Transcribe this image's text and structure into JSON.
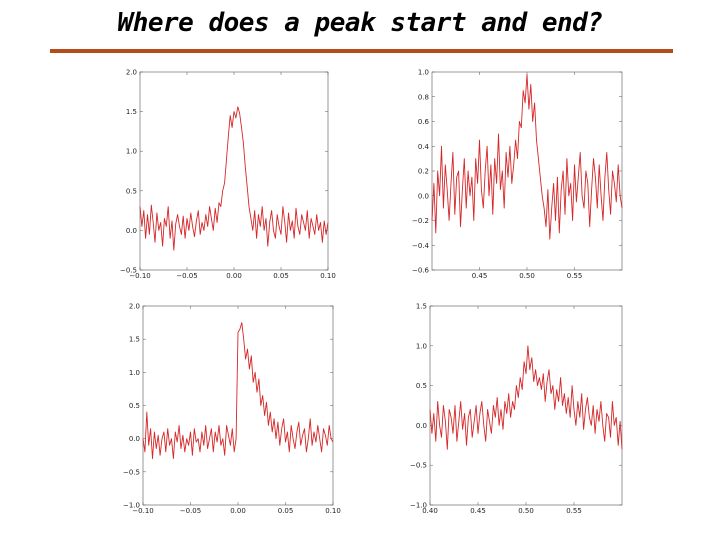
{
  "slide": {
    "title": "Where does a peak start and end?",
    "rule_color": "#b64b1b"
  },
  "chart_data": [
    {
      "type": "line",
      "position": "top-left",
      "color": "#d62728",
      "xlim": [
        -0.1,
        0.1
      ],
      "ylim": [
        -0.5,
        2.0
      ],
      "xticks": [
        -0.1,
        -0.05,
        0.0,
        0.05,
        0.1
      ],
      "xtick_labels": [
        "−0.10",
        "−0.05",
        "0.00",
        "0.05",
        "0.10"
      ],
      "yticks": [
        -0.5,
        0.0,
        0.5,
        1.0,
        1.5,
        2.0
      ],
      "ytick_labels": [
        "−0.5",
        "0.0",
        "0.5",
        "1.0",
        "1.5",
        "2.0"
      ],
      "x": [
        -0.1,
        -0.098,
        -0.096,
        -0.094,
        -0.092,
        -0.09,
        -0.088,
        -0.086,
        -0.084,
        -0.082,
        -0.08,
        -0.078,
        -0.076,
        -0.074,
        -0.072,
        -0.07,
        -0.068,
        -0.066,
        -0.064,
        -0.062,
        -0.06,
        -0.058,
        -0.056,
        -0.054,
        -0.052,
        -0.05,
        -0.048,
        -0.046,
        -0.044,
        -0.042,
        -0.04,
        -0.038,
        -0.036,
        -0.034,
        -0.032,
        -0.03,
        -0.028,
        -0.026,
        -0.024,
        -0.022,
        -0.02,
        -0.018,
        -0.016,
        -0.014,
        -0.012,
        -0.01,
        -0.008,
        -0.006,
        -0.004,
        -0.002,
        0.0,
        0.002,
        0.004,
        0.006,
        0.008,
        0.01,
        0.012,
        0.014,
        0.016,
        0.018,
        0.02,
        0.022,
        0.024,
        0.026,
        0.028,
        0.03,
        0.032,
        0.034,
        0.036,
        0.038,
        0.04,
        0.042,
        0.044,
        0.046,
        0.048,
        0.05,
        0.052,
        0.054,
        0.056,
        0.058,
        0.06,
        0.062,
        0.064,
        0.066,
        0.068,
        0.07,
        0.072,
        0.074,
        0.076,
        0.078,
        0.08,
        0.082,
        0.084,
        0.086,
        0.088,
        0.09,
        0.092,
        0.094,
        0.096,
        0.098,
        0.1
      ],
      "y": [
        0.3,
        0.05,
        0.25,
        -0.1,
        0.2,
        -0.05,
        0.32,
        0.1,
        -0.15,
        0.22,
        0.0,
        0.1,
        -0.2,
        0.15,
        0.05,
        0.3,
        -0.1,
        0.12,
        -0.25,
        0.08,
        0.2,
        0.05,
        -0.05,
        0.18,
        -0.1,
        0.15,
        0.0,
        0.22,
        0.05,
        -0.08,
        0.12,
        0.25,
        -0.05,
        0.1,
        0.0,
        0.2,
        0.05,
        0.3,
        0.15,
        0.0,
        0.28,
        0.1,
        0.35,
        0.3,
        0.5,
        0.6,
        0.9,
        1.2,
        1.45,
        1.3,
        1.5,
        1.42,
        1.56,
        1.48,
        1.3,
        1.1,
        0.8,
        0.55,
        0.3,
        0.15,
        0.0,
        0.25,
        -0.1,
        0.2,
        0.05,
        0.3,
        0.0,
        0.15,
        -0.2,
        0.1,
        0.25,
        0.0,
        -0.1,
        0.2,
        0.05,
        -0.05,
        0.3,
        0.1,
        -0.15,
        0.22,
        0.0,
        0.12,
        -0.1,
        0.28,
        0.05,
        -0.05,
        0.2,
        0.1,
        0.0,
        0.25,
        -0.1,
        0.15,
        0.05,
        -0.05,
        0.2,
        0.0,
        0.1,
        -0.15,
        0.12,
        -0.05,
        0.1
      ]
    },
    {
      "type": "line",
      "position": "top-right",
      "color": "#d62728",
      "xlim": [
        0.4,
        0.6
      ],
      "ylim": [
        -0.6,
        1.0
      ],
      "xticks": [
        0.45,
        0.5,
        0.55
      ],
      "xtick_labels": [
        "0.45",
        "0.50",
        "0.55"
      ],
      "yticks": [
        -0.6,
        -0.4,
        -0.2,
        0.0,
        0.2,
        0.4,
        0.6,
        0.8,
        1.0
      ],
      "ytick_labels": [
        "−0.6",
        "−0.4",
        "−0.2",
        "0.0",
        "0.2",
        "0.4",
        "0.6",
        "0.8",
        "1.0"
      ],
      "x": [
        0.4,
        0.402,
        0.404,
        0.406,
        0.408,
        0.41,
        0.412,
        0.414,
        0.416,
        0.418,
        0.42,
        0.422,
        0.424,
        0.426,
        0.428,
        0.43,
        0.432,
        0.434,
        0.436,
        0.438,
        0.44,
        0.442,
        0.444,
        0.446,
        0.448,
        0.45,
        0.452,
        0.454,
        0.456,
        0.458,
        0.46,
        0.462,
        0.464,
        0.466,
        0.468,
        0.47,
        0.472,
        0.474,
        0.476,
        0.478,
        0.48,
        0.482,
        0.484,
        0.486,
        0.488,
        0.49,
        0.492,
        0.494,
        0.496,
        0.498,
        0.5,
        0.502,
        0.504,
        0.506,
        0.508,
        0.51,
        0.512,
        0.514,
        0.516,
        0.518,
        0.52,
        0.522,
        0.524,
        0.526,
        0.528,
        0.53,
        0.532,
        0.534,
        0.536,
        0.538,
        0.54,
        0.542,
        0.544,
        0.546,
        0.548,
        0.55,
        0.552,
        0.554,
        0.556,
        0.558,
        0.56,
        0.562,
        0.564,
        0.566,
        0.568,
        0.57,
        0.572,
        0.574,
        0.576,
        0.578,
        0.58,
        0.582,
        0.584,
        0.586,
        0.588,
        0.59,
        0.592,
        0.594,
        0.596,
        0.598,
        0.6
      ],
      "y": [
        -0.2,
        0.1,
        -0.3,
        0.2,
        0.0,
        0.4,
        -0.1,
        0.25,
        0.05,
        -0.2,
        0.1,
        0.35,
        -0.15,
        0.15,
        0.2,
        -0.25,
        0.05,
        0.3,
        -0.1,
        0.2,
        0.0,
        0.15,
        -0.2,
        0.3,
        0.1,
        0.45,
        0.05,
        -0.1,
        0.2,
        0.4,
        0.0,
        0.25,
        -0.15,
        0.3,
        0.1,
        0.5,
        0.05,
        0.2,
        -0.1,
        0.35,
        0.15,
        0.4,
        0.1,
        0.25,
        0.45,
        0.3,
        0.6,
        0.55,
        0.85,
        0.75,
        0.98,
        0.7,
        0.9,
        0.6,
        0.75,
        0.45,
        0.3,
        0.15,
        0.0,
        -0.1,
        -0.25,
        0.05,
        -0.35,
        -0.1,
        0.1,
        -0.2,
        0.15,
        -0.3,
        0.05,
        0.2,
        -0.15,
        0.3,
        0.0,
        0.1,
        -0.2,
        0.25,
        -0.05,
        0.15,
        0.35,
        0.0,
        -0.1,
        0.2,
        0.1,
        -0.25,
        0.05,
        0.3,
        0.15,
        -0.1,
        0.25,
        0.0,
        -0.2,
        0.15,
        0.35,
        0.05,
        -0.15,
        0.2,
        0.1,
        -0.05,
        0.25,
        0.0,
        -0.1
      ]
    },
    {
      "type": "line",
      "position": "bottom-left",
      "color": "#d62728",
      "xlim": [
        -0.1,
        0.1
      ],
      "ylim": [
        -1.0,
        2.0
      ],
      "xticks": [
        -0.1,
        -0.05,
        0.0,
        0.05,
        0.1
      ],
      "xtick_labels": [
        "−0.10",
        "−0.05",
        "0.00",
        "0.05",
        "0.10"
      ],
      "yticks": [
        -1.0,
        -0.5,
        0.0,
        0.5,
        1.0,
        1.5,
        2.0
      ],
      "ytick_labels": [
        "−1.0",
        "−0.5",
        "0.0",
        "0.5",
        "1.0",
        "1.5",
        "2.0"
      ],
      "x": [
        -0.1,
        -0.098,
        -0.096,
        -0.094,
        -0.092,
        -0.09,
        -0.088,
        -0.086,
        -0.084,
        -0.082,
        -0.08,
        -0.078,
        -0.076,
        -0.074,
        -0.072,
        -0.07,
        -0.068,
        -0.066,
        -0.064,
        -0.062,
        -0.06,
        -0.058,
        -0.056,
        -0.054,
        -0.052,
        -0.05,
        -0.048,
        -0.046,
        -0.044,
        -0.042,
        -0.04,
        -0.038,
        -0.036,
        -0.034,
        -0.032,
        -0.03,
        -0.028,
        -0.026,
        -0.024,
        -0.022,
        -0.02,
        -0.018,
        -0.016,
        -0.014,
        -0.012,
        -0.01,
        -0.008,
        -0.006,
        -0.004,
        -0.002,
        0.0,
        0.002,
        0.004,
        0.006,
        0.008,
        0.01,
        0.012,
        0.014,
        0.016,
        0.018,
        0.02,
        0.022,
        0.024,
        0.026,
        0.028,
        0.03,
        0.032,
        0.034,
        0.036,
        0.038,
        0.04,
        0.042,
        0.044,
        0.046,
        0.048,
        0.05,
        0.052,
        0.054,
        0.056,
        0.058,
        0.06,
        0.062,
        0.064,
        0.066,
        0.068,
        0.07,
        0.072,
        0.074,
        0.076,
        0.078,
        0.08,
        0.082,
        0.084,
        0.086,
        0.088,
        0.09,
        0.092,
        0.094,
        0.096,
        0.098,
        0.1
      ],
      "y": [
        0.0,
        -0.2,
        0.4,
        -0.1,
        0.15,
        -0.3,
        0.1,
        -0.15,
        0.05,
        -0.25,
        0.0,
        0.1,
        -0.2,
        0.15,
        -0.1,
        0.0,
        -0.3,
        0.1,
        -0.05,
        0.2,
        -0.15,
        0.05,
        -0.2,
        0.0,
        -0.1,
        0.1,
        -0.25,
        0.15,
        -0.05,
        0.0,
        -0.2,
        0.1,
        -0.1,
        0.2,
        -0.15,
        0.0,
        0.15,
        -0.2,
        0.1,
        -0.05,
        0.2,
        -0.1,
        0.0,
        -0.25,
        0.2,
        0.05,
        -0.1,
        0.15,
        -0.2,
        0.0,
        1.6,
        1.65,
        1.75,
        1.5,
        1.2,
        1.35,
        1.05,
        1.25,
        0.85,
        1.0,
        0.7,
        0.9,
        0.5,
        0.65,
        0.35,
        0.55,
        0.2,
        0.4,
        0.1,
        0.3,
        0.0,
        0.25,
        -0.1,
        0.15,
        0.3,
        -0.05,
        0.1,
        -0.2,
        0.2,
        0.0,
        -0.15,
        0.1,
        0.25,
        -0.1,
        0.05,
        0.15,
        -0.2,
        0.0,
        0.3,
        -0.1,
        0.1,
        -0.05,
        0.2,
        0.0,
        -0.2,
        0.15,
        0.05,
        -0.1,
        0.2,
        0.0,
        -0.05
      ]
    },
    {
      "type": "line",
      "position": "bottom-right",
      "color": "#d62728",
      "xlim": [
        0.4,
        0.6
      ],
      "ylim": [
        -1.0,
        1.5
      ],
      "xticks": [
        0.4,
        0.45,
        0.5,
        0.55
      ],
      "xtick_labels": [
        "0.40",
        "0.45",
        "0.50",
        "0.55"
      ],
      "yticks": [
        -1.0,
        -0.5,
        0.0,
        0.5,
        1.0,
        1.5
      ],
      "ytick_labels": [
        "−1.0",
        "−0.5",
        "0.0",
        "0.5",
        "1.0",
        "1.5"
      ],
      "x": [
        0.4,
        0.402,
        0.404,
        0.406,
        0.408,
        0.41,
        0.412,
        0.414,
        0.416,
        0.418,
        0.42,
        0.422,
        0.424,
        0.426,
        0.428,
        0.43,
        0.432,
        0.434,
        0.436,
        0.438,
        0.44,
        0.442,
        0.444,
        0.446,
        0.448,
        0.45,
        0.452,
        0.454,
        0.456,
        0.458,
        0.46,
        0.462,
        0.464,
        0.466,
        0.468,
        0.47,
        0.472,
        0.474,
        0.476,
        0.478,
        0.48,
        0.482,
        0.484,
        0.486,
        0.488,
        0.49,
        0.492,
        0.494,
        0.496,
        0.498,
        0.5,
        0.502,
        0.504,
        0.506,
        0.508,
        0.51,
        0.512,
        0.514,
        0.516,
        0.518,
        0.52,
        0.522,
        0.524,
        0.526,
        0.528,
        0.53,
        0.532,
        0.534,
        0.536,
        0.538,
        0.54,
        0.542,
        0.544,
        0.546,
        0.548,
        0.55,
        0.552,
        0.554,
        0.556,
        0.558,
        0.56,
        0.562,
        0.564,
        0.566,
        0.568,
        0.57,
        0.572,
        0.574,
        0.576,
        0.578,
        0.58,
        0.582,
        0.584,
        0.586,
        0.588,
        0.59,
        0.592,
        0.594,
        0.596,
        0.598,
        0.6
      ],
      "y": [
        0.2,
        -0.1,
        0.15,
        -0.2,
        0.3,
        0.0,
        -0.15,
        0.25,
        0.05,
        -0.3,
        0.2,
        0.1,
        -0.1,
        0.25,
        -0.2,
        0.05,
        0.3,
        -0.05,
        0.15,
        -0.25,
        0.1,
        0.2,
        -0.15,
        0.05,
        0.25,
        -0.1,
        0.15,
        0.3,
        0.0,
        -0.2,
        0.2,
        0.05,
        -0.1,
        0.25,
        0.1,
        0.35,
        0.0,
        0.2,
        -0.05,
        0.3,
        0.15,
        0.4,
        0.1,
        0.3,
        0.2,
        0.5,
        0.35,
        0.6,
        0.45,
        0.8,
        0.65,
        1.0,
        0.7,
        0.85,
        0.55,
        0.7,
        0.5,
        0.6,
        0.45,
        0.65,
        0.3,
        0.55,
        0.7,
        0.4,
        0.5,
        0.2,
        0.45,
        0.3,
        0.6,
        0.25,
        0.4,
        0.15,
        0.35,
        0.1,
        0.5,
        0.2,
        0.0,
        0.3,
        0.1,
        0.4,
        -0.05,
        0.2,
        0.35,
        0.1,
        0.0,
        0.25,
        -0.1,
        0.2,
        0.05,
        0.3,
        0.0,
        -0.2,
        0.15,
        0.1,
        -0.15,
        0.3,
        0.0,
        0.1,
        -0.25,
        0.05,
        -0.3
      ]
    }
  ]
}
